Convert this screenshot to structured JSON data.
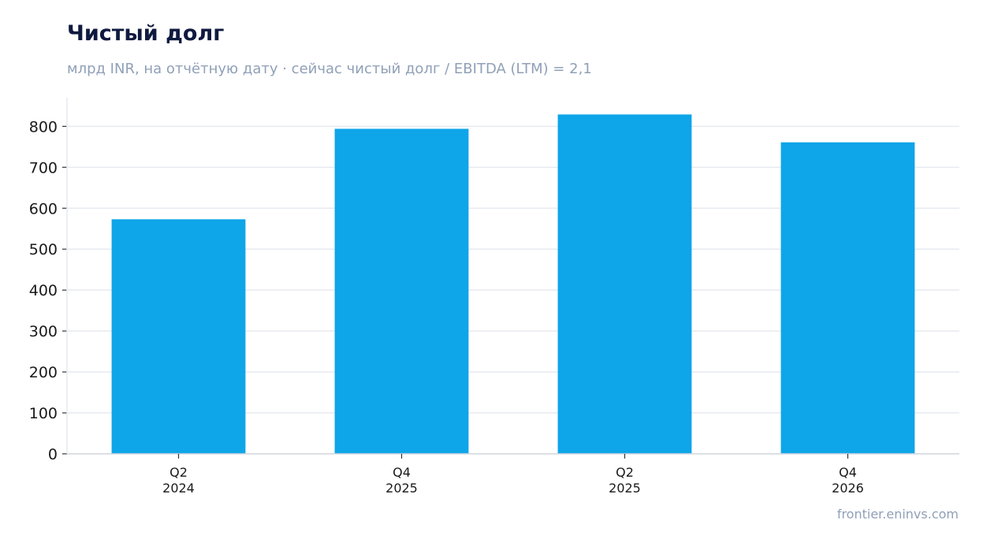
{
  "chart_data": {
    "type": "bar",
    "title": "Чистый долг",
    "subtitle": "млрд INR, на отчётную дату · сейчас чистый долг / EBITDA (LTM) = 2,1",
    "categories": [
      {
        "line1": "Q2",
        "line2": "2024"
      },
      {
        "line1": "Q4",
        "line2": "2025"
      },
      {
        "line1": "Q2",
        "line2": "2025"
      },
      {
        "line1": "Q4",
        "line2": "2026"
      }
    ],
    "values": [
      573,
      794,
      829,
      761
    ],
    "ylim": [
      0,
      870
    ],
    "yticks": [
      0,
      100,
      200,
      300,
      400,
      500,
      600,
      700,
      800
    ],
    "xlabel": "",
    "ylabel": "",
    "grid": true,
    "bar_color": "#0ea5e9",
    "source": "frontier.eninvs.com"
  }
}
